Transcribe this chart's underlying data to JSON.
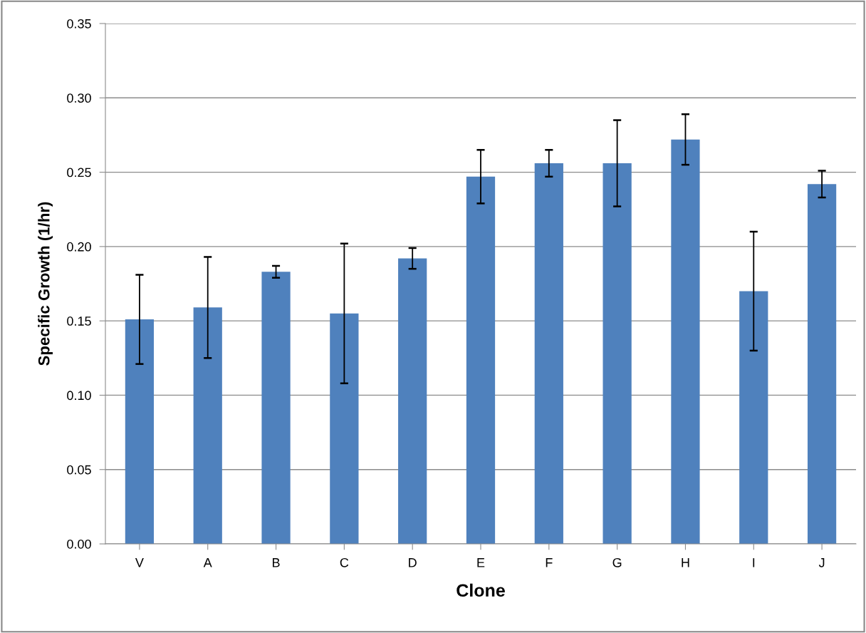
{
  "chart_data": {
    "type": "bar",
    "xlabel": "Clone",
    "ylabel": "Specific Growth (1/hr)",
    "categories": [
      "V",
      "A",
      "B",
      "C",
      "D",
      "E",
      "F",
      "G",
      "H",
      "I",
      "J"
    ],
    "values": [
      0.151,
      0.159,
      0.183,
      0.155,
      0.192,
      0.247,
      0.256,
      0.256,
      0.272,
      0.17,
      0.242
    ],
    "errors": [
      0.03,
      0.034,
      0.004,
      0.047,
      0.007,
      0.018,
      0.009,
      0.029,
      0.017,
      0.04,
      0.009
    ],
    "color": "#4f81bd",
    "ylim": [
      0,
      0.35
    ],
    "yticks": [
      {
        "value": 0,
        "label": "0.00"
      },
      {
        "value": 0.05,
        "label": "0.05"
      },
      {
        "value": 0.1,
        "label": "0.10"
      },
      {
        "value": 0.15,
        "label": "0.15"
      },
      {
        "value": 0.2,
        "label": "0.20"
      },
      {
        "value": 0.25,
        "label": "0.25"
      },
      {
        "value": 0.3,
        "label": "0.30"
      },
      {
        "value": 0.35,
        "label": "0.35"
      }
    ],
    "grid": "y"
  }
}
